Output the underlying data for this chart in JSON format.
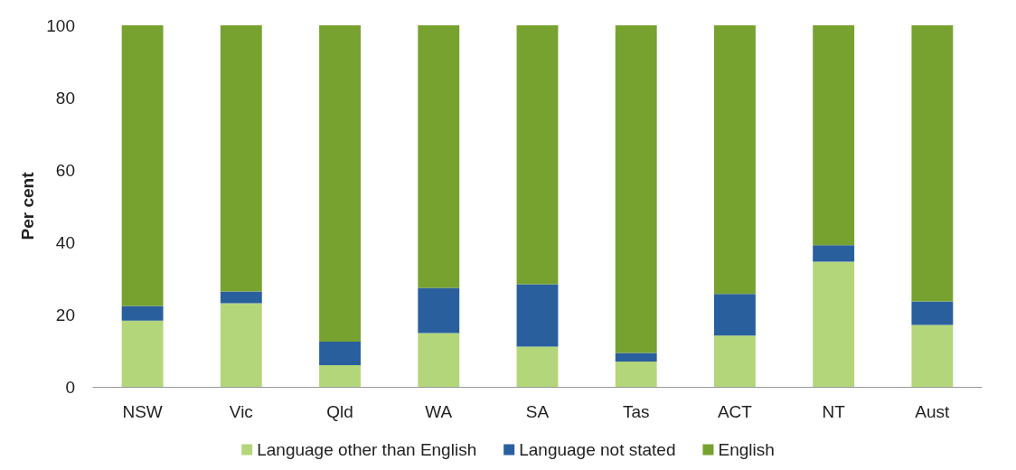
{
  "chart_data": {
    "type": "bar",
    "stacked": true,
    "ylabel": "Per cent",
    "categories": [
      "NSW",
      "Vic",
      "Qld",
      "WA",
      "SA",
      "Tas",
      "ACT",
      "NT",
      "Aust"
    ],
    "series": [
      {
        "name": "Language other than English",
        "color": "#b3d67a",
        "values": [
          18.3,
          23.1,
          6.0,
          14.9,
          11.1,
          7.0,
          14.2,
          34.6,
          17.1
        ]
      },
      {
        "name": "Language not stated",
        "color": "#2a5f9e",
        "values": [
          4.1,
          3.3,
          6.5,
          12.5,
          17.3,
          2.4,
          11.5,
          4.6,
          6.5
        ]
      },
      {
        "name": "English",
        "color": "#77a22f",
        "values": [
          77.6,
          73.6,
          87.5,
          72.6,
          71.6,
          90.6,
          74.3,
          60.8,
          76.4
        ]
      }
    ],
    "ylim": [
      0,
      100
    ],
    "yticks": [
      0,
      20,
      40,
      60,
      80,
      100
    ],
    "grid": false,
    "legend": "bottom"
  }
}
